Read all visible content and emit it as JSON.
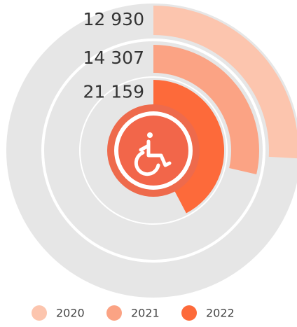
{
  "chart_data": {
    "type": "radialBar",
    "categories": [
      "2020",
      "2021",
      "2022"
    ],
    "values": [
      12930,
      14307,
      21159
    ],
    "value_labels": [
      "12 930",
      "14 307",
      "21 159"
    ],
    "colors": [
      "#fcc5ae",
      "#fba384",
      "#fd6a3a"
    ],
    "track_color": "#e6e6e6",
    "xlim": [
      0,
      50000
    ]
  }
}
